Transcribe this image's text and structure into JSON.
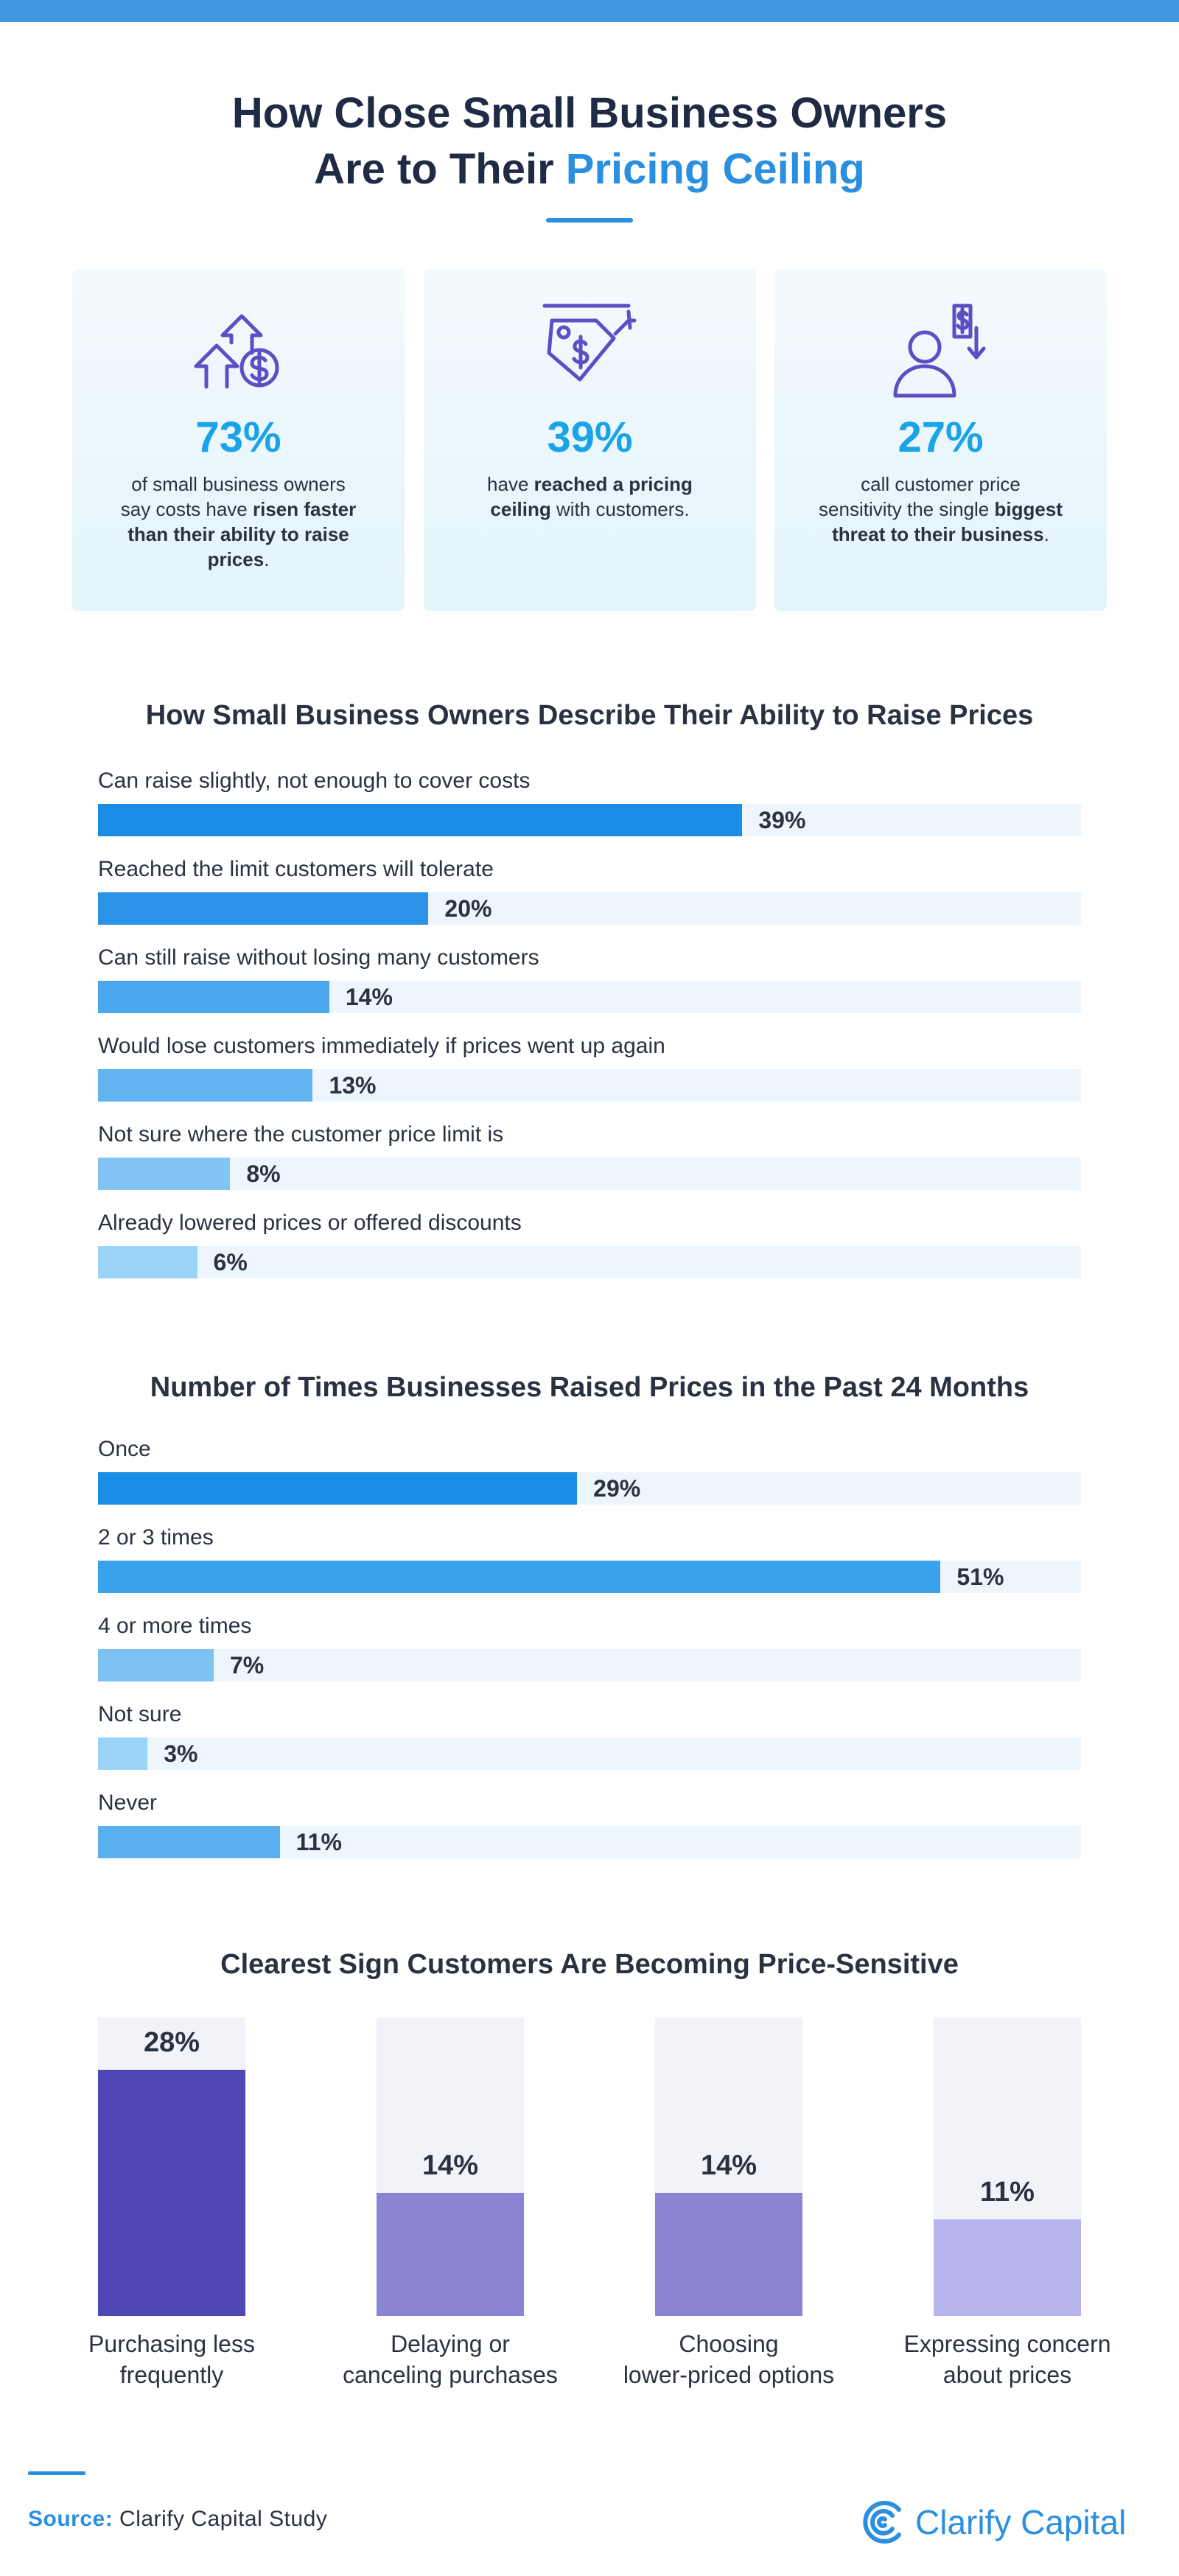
{
  "header": {
    "title_line1": "How Close Small Business Owners",
    "title_line2_prefix": "Are to Their ",
    "title_line2_highlight": "Pricing Ceiling"
  },
  "stats": [
    {
      "icon": "arrows-dollar-icon",
      "pct": "73%",
      "text_html": "of small business owners say costs have <b>risen faster than their ability to raise prices</b>."
    },
    {
      "icon": "price-tag-icon",
      "pct": "39%",
      "text_html": "have <b>reached a pricing ceiling</b> with customers."
    },
    {
      "icon": "customer-price-icon",
      "pct": "27%",
      "text_html": "call customer price sensitivity the single <b>biggest threat to their business</b>."
    }
  ],
  "colors": {
    "accent": "#2b8fe0",
    "stat": "#1aa3e8",
    "track": "#eef6fd",
    "purple_dark": "#5046b4",
    "purple_mid": "#8b84d4",
    "purple_light": "#b8b5ee"
  },
  "chart_data": [
    {
      "type": "bar",
      "orientation": "horizontal",
      "title": "How Small Business Owners Describe Their Ability to Raise Prices",
      "categories": [
        "Can raise slightly, not enough to cover costs",
        "Reached the limit customers will tolerate",
        "Can still raise without losing many customers",
        "Would lose customers immediately if prices went up again",
        "Not sure where the customer price limit is",
        "Already lowered prices or offered discounts"
      ],
      "values": [
        39,
        20,
        14,
        13,
        8,
        6
      ],
      "labels": [
        "39%",
        "20%",
        "14%",
        "13%",
        "8%",
        "6%"
      ],
      "colors": [
        "#1a8ee6",
        "#2a93e8",
        "#4aa7ee",
        "#62b4f1",
        "#82c5f4",
        "#9ad3f8"
      ],
      "unit": "%",
      "xlim": [
        0,
        59.5
      ]
    },
    {
      "type": "bar",
      "orientation": "horizontal",
      "title": "Number of Times Businesses Raised Prices in the Past 24 Months",
      "categories": [
        "Once",
        "2 or 3 times",
        "4 or more times",
        "Not sure",
        "Never"
      ],
      "values": [
        29,
        51,
        7,
        3,
        11
      ],
      "labels": [
        "29%",
        "51%",
        "7%",
        "3%",
        "11%"
      ],
      "colors": [
        "#1a8ee6",
        "#3aa1ec",
        "#7cc2f3",
        "#9ad3f8",
        "#5aaff0"
      ],
      "unit": "%",
      "xlim": [
        0,
        59.5
      ]
    },
    {
      "type": "bar",
      "orientation": "vertical",
      "title": "Clearest Sign Customers Are Becoming Price-Sensitive",
      "categories": [
        "Purchasing less frequently",
        "Delaying or canceling purchases",
        "Choosing lower-priced options",
        "Expressing concern about prices"
      ],
      "category_lines": [
        [
          "Purchasing less",
          "frequently"
        ],
        [
          "Delaying or",
          "canceling purchases"
        ],
        [
          "Choosing",
          "lower-priced options"
        ],
        [
          "Expressing concern",
          "about prices"
        ]
      ],
      "values": [
        28,
        14,
        14,
        11
      ],
      "labels": [
        "28%",
        "14%",
        "14%",
        "11%"
      ],
      "colors": [
        "#5046b4",
        "#8b84d4",
        "#8b84d4",
        "#b8b5ee"
      ],
      "unit": "%",
      "ylim": [
        0,
        34
      ]
    }
  ],
  "footer": {
    "source_label": "Source:",
    "source_text": "Clarify Capital Study",
    "brand": "Clarify Capital"
  }
}
